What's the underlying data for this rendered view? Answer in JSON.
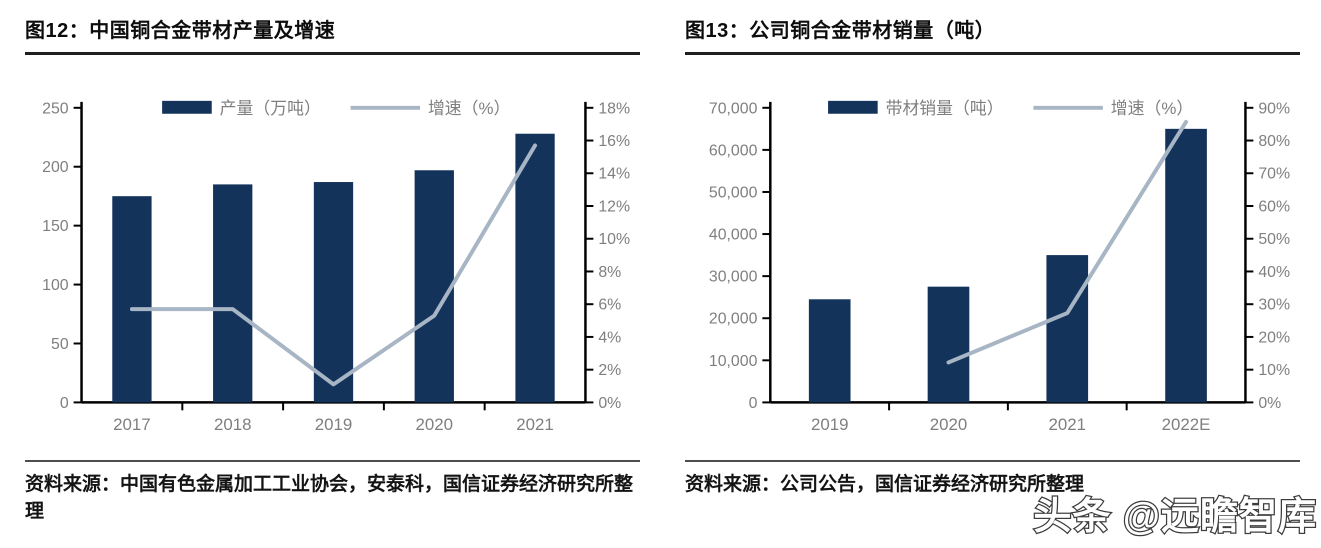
{
  "watermark": {
    "text": "头条 @远瞻智库"
  },
  "panels": [
    {
      "source": "资料来源：中国有色金属加工工业协会，安泰科，国信证券经济研究所整理"
    },
    {
      "source": "资料来源：公司公告，国信证券经济研究所整理"
    }
  ],
  "colors": {
    "bar": "#14335B",
    "line": "#A7B5C5",
    "axis": "#000000",
    "tick_label": "#7f7f7f",
    "legend_label": "#7f7f7f"
  },
  "chart_data": [
    {
      "type": "bar",
      "title": "图12：中国铜合金带材产量及增速",
      "categories": [
        "2017",
        "2018",
        "2019",
        "2020",
        "2021"
      ],
      "series": [
        {
          "name": "产量（万吨）",
          "type": "bar",
          "axis": "left",
          "values": [
            175,
            185,
            187,
            197,
            228
          ]
        },
        {
          "name": "增速（%）",
          "type": "line",
          "axis": "right",
          "values": [
            5.7,
            5.7,
            1.1,
            5.3,
            15.7
          ]
        }
      ],
      "left_axis": {
        "min": 0,
        "max": 250,
        "step": 50,
        "ticks": [
          "0",
          "50",
          "100",
          "150",
          "200",
          "250"
        ]
      },
      "right_axis": {
        "min": 0,
        "max": 18,
        "step": 2,
        "ticks": [
          "0%",
          "2%",
          "4%",
          "6%",
          "8%",
          "10%",
          "12%",
          "14%",
          "16%",
          "18%"
        ]
      },
      "grid": false,
      "legend_position": "top"
    },
    {
      "type": "bar",
      "title": "图13：公司铜合金带材销量（吨）",
      "categories": [
        "2019",
        "2020",
        "2021",
        "2022E"
      ],
      "series": [
        {
          "name": "带材销量（吨）",
          "type": "bar",
          "axis": "left",
          "values": [
            24500,
            27500,
            35000,
            65000
          ]
        },
        {
          "name": "增速（%）",
          "type": "line",
          "axis": "right",
          "values": [
            null,
            12.2,
            27.3,
            85.7
          ]
        }
      ],
      "left_axis": {
        "min": 0,
        "max": 70000,
        "step": 10000,
        "ticks": [
          "0",
          "10,000",
          "20,000",
          "30,000",
          "40,000",
          "50,000",
          "60,000",
          "70,000"
        ]
      },
      "right_axis": {
        "min": 0,
        "max": 90,
        "step": 10,
        "ticks": [
          "0%",
          "10%",
          "20%",
          "30%",
          "40%",
          "50%",
          "60%",
          "70%",
          "80%",
          "90%"
        ]
      },
      "grid": false,
      "legend_position": "top"
    }
  ]
}
